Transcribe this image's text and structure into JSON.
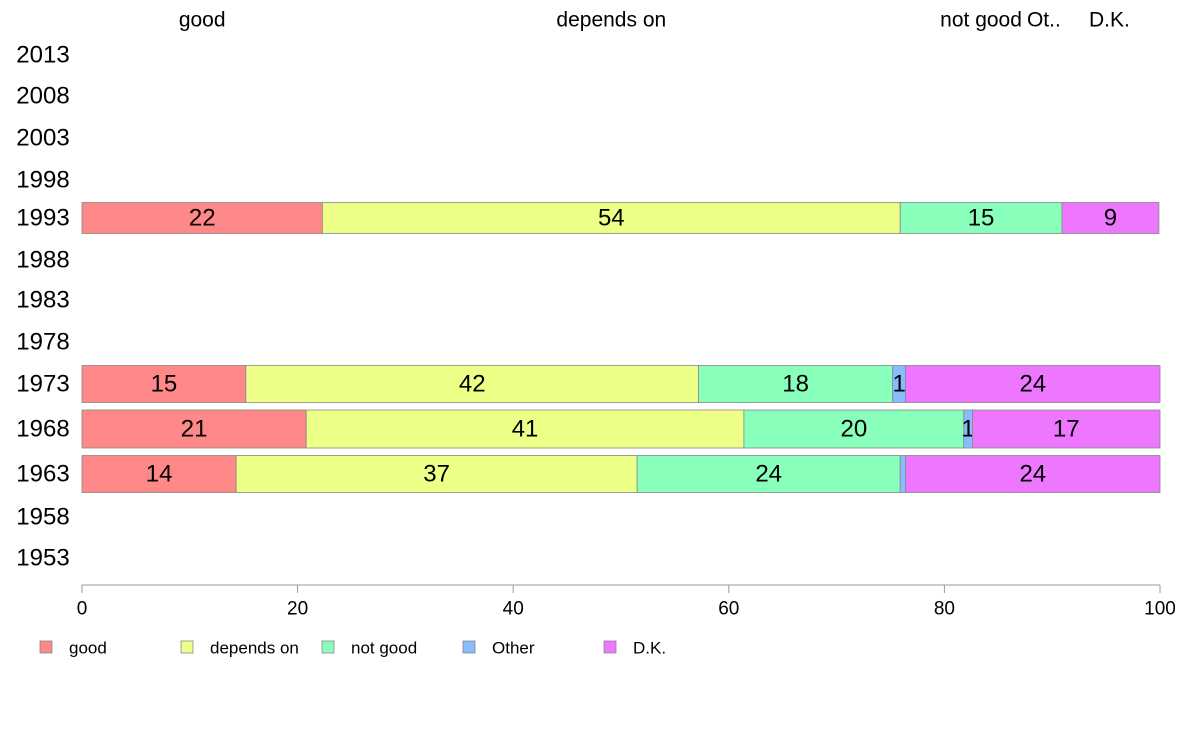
{
  "chart_data": {
    "type": "bar",
    "orientation": "horizontal",
    "stacked": true,
    "years": [
      "2013",
      "2008",
      "2003",
      "1998",
      "1993",
      "1988",
      "1983",
      "1978",
      "1973",
      "1968",
      "1963",
      "1958",
      "1953"
    ],
    "series": [
      {
        "name": "good",
        "color": "#ff8888",
        "values": [
          null,
          null,
          null,
          null,
          22.3,
          null,
          null,
          null,
          15.2,
          20.8,
          14.3,
          null,
          null
        ],
        "labels": [
          "",
          "",
          "",
          "",
          "22",
          "",
          "",
          "",
          "15",
          "21",
          "14",
          "",
          ""
        ]
      },
      {
        "name": "depends on",
        "color": "#eeff88",
        "values": [
          null,
          null,
          null,
          null,
          53.6,
          null,
          null,
          null,
          42.0,
          40.6,
          37.2,
          null,
          null
        ],
        "labels": [
          "",
          "",
          "",
          "",
          "54",
          "",
          "",
          "",
          "42",
          "41",
          "37",
          "",
          ""
        ]
      },
      {
        "name": "not good",
        "color": "#88ffbb",
        "values": [
          null,
          null,
          null,
          null,
          15.0,
          null,
          null,
          null,
          18.0,
          20.4,
          24.4,
          null,
          null
        ],
        "labels": [
          "",
          "",
          "",
          "",
          "15",
          "",
          "",
          "",
          "18",
          "20",
          "24",
          "",
          ""
        ]
      },
      {
        "name": "Other",
        "color": "#88bbff",
        "values": [
          null,
          null,
          null,
          null,
          0.0,
          null,
          null,
          null,
          1.2,
          0.8,
          0.5,
          null,
          null
        ],
        "labels": [
          "",
          "",
          "",
          "",
          "",
          "",
          "",
          "",
          "1",
          "1",
          "",
          "",
          ""
        ]
      },
      {
        "name": "D.K.",
        "color": "#ee77ff",
        "values": [
          null,
          null,
          null,
          null,
          9.0,
          null,
          null,
          null,
          23.6,
          17.4,
          23.6,
          null,
          null
        ],
        "labels": [
          "",
          "",
          "",
          "",
          "9",
          "",
          "",
          "",
          "24",
          "17",
          "24",
          "",
          ""
        ]
      }
    ],
    "top_labels": [
      "good",
      "depends on",
      "not good",
      "Ot..",
      "D.K."
    ],
    "xlim": [
      0,
      100
    ],
    "xticks": [
      "0",
      "20",
      "40",
      "60",
      "80",
      "100"
    ],
    "legend": {
      "placement": "bottom-left",
      "items": [
        "good",
        "depends on",
        "not good",
        "Other",
        "D.K."
      ]
    },
    "grid": false
  }
}
